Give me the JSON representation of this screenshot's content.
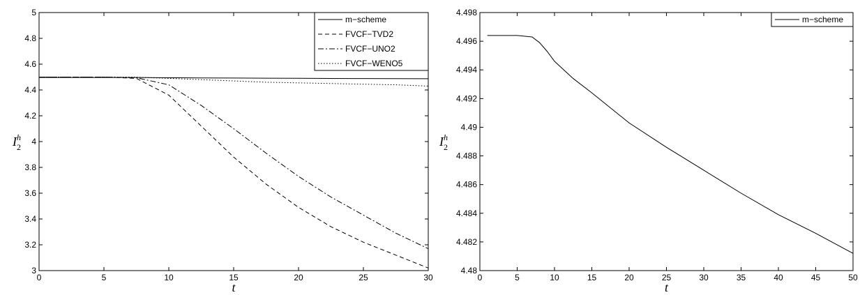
{
  "chart_data": [
    {
      "type": "line",
      "xlabel": "t",
      "ylabel": {
        "base": "I",
        "sub": "2",
        "sup": "h"
      },
      "x": [
        0,
        5,
        7.5,
        10,
        12.5,
        15,
        17.5,
        20,
        22.5,
        25,
        27.5,
        30
      ],
      "series": [
        {
          "name": "m−scheme",
          "color": "#000000",
          "linestyle": "solid",
          "values": [
            4.4964,
            4.4964,
            4.4963,
            4.4946,
            4.4934,
            4.4924,
            4.4913,
            4.4903,
            4.4894,
            4.4886,
            4.4878,
            4.487
          ]
        },
        {
          "name": "FVCF−TVD2",
          "color": "#000000",
          "linestyle": "dashed",
          "values": [
            4.5,
            4.5,
            4.49,
            4.36,
            4.12,
            3.88,
            3.67,
            3.49,
            3.34,
            3.22,
            3.12,
            3.02
          ]
        },
        {
          "name": "FVCF−UNO2",
          "color": "#000000",
          "linestyle": "dashdot",
          "values": [
            4.5,
            4.5,
            4.495,
            4.44,
            4.28,
            4.1,
            3.91,
            3.73,
            3.57,
            3.43,
            3.29,
            3.17
          ]
        },
        {
          "name": "FVCF−WENO5",
          "color": "#000000",
          "linestyle": "dotted",
          "values": [
            4.5,
            4.5,
            4.499,
            4.49,
            4.48,
            4.47,
            4.46,
            4.455,
            4.45,
            4.445,
            4.44,
            4.43
          ]
        }
      ],
      "xlim": [
        0,
        30
      ],
      "xticks": [
        0,
        5,
        10,
        15,
        20,
        25,
        30
      ],
      "ylim": [
        3,
        5
      ],
      "yticks": [
        3,
        3.2,
        3.4,
        3.6,
        3.8,
        4,
        4.2,
        4.4,
        4.6,
        4.8,
        5
      ],
      "legend": "upper right",
      "grid": false
    },
    {
      "type": "line",
      "xlabel": "t",
      "ylabel": {
        "base": "I",
        "sub": "2",
        "sup": "h"
      },
      "x": [
        1,
        5,
        7,
        8,
        9,
        10,
        12.5,
        15,
        20,
        25,
        30,
        35,
        40,
        45,
        50
      ],
      "series": [
        {
          "name": "m−scheme",
          "color": "#000000",
          "linestyle": "solid",
          "values": [
            4.4964,
            4.4964,
            4.4963,
            4.4959,
            4.4953,
            4.4946,
            4.4934,
            4.4924,
            4.4903,
            4.4886,
            4.487,
            4.4854,
            4.4839,
            4.4826,
            4.4812
          ]
        }
      ],
      "xlim": [
        0,
        50
      ],
      "xticks": [
        0,
        5,
        10,
        15,
        20,
        25,
        30,
        35,
        40,
        45,
        50
      ],
      "ylim": [
        4.48,
        4.498
      ],
      "yticks": [
        4.48,
        4.482,
        4.484,
        4.486,
        4.488,
        4.49,
        4.492,
        4.494,
        4.496,
        4.498
      ],
      "legend": "upper right",
      "grid": false
    }
  ]
}
